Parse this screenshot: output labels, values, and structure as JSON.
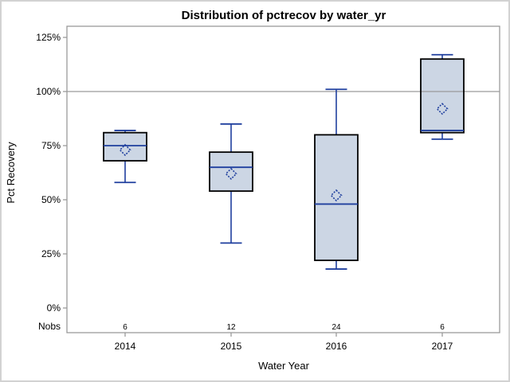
{
  "chart_data": {
    "type": "boxplot",
    "title": "Distribution of pctrecov by water_yr",
    "xlabel": "Water Year",
    "ylabel": "Pct Recovery",
    "categories": [
      "2014",
      "2015",
      "2016",
      "2017"
    ],
    "nobs_label": "Nobs",
    "nobs": [
      6,
      12,
      24,
      6
    ],
    "y_ticks": [
      0,
      25,
      50,
      75,
      100,
      125
    ],
    "y_tick_labels": [
      "0%",
      "25%",
      "50%",
      "75%",
      "100%",
      "125%"
    ],
    "ylim": [
      -11.4,
      130.1
    ],
    "reference_line": 100,
    "grid": "reference-line-at-100-only",
    "legend": "none",
    "series": [
      {
        "category": "2014",
        "min": 58,
        "q1": 68,
        "median": 75,
        "q3": 81,
        "max": 82,
        "mean": 73,
        "nobs": 6
      },
      {
        "category": "2015",
        "min": 30,
        "q1": 54,
        "median": 65,
        "q3": 72,
        "max": 85,
        "mean": 62,
        "nobs": 12
      },
      {
        "category": "2016",
        "min": 18,
        "q1": 22,
        "median": 48,
        "q3": 80,
        "max": 101,
        "mean": 52,
        "nobs": 24
      },
      {
        "category": "2017",
        "min": 78,
        "q1": 81,
        "median": 82,
        "q3": 115,
        "max": 117,
        "mean": 92,
        "nobs": 6
      }
    ],
    "colors": {
      "box_fill": "#ccd6e4",
      "box_edge": "#000000",
      "line_blue": "#1f3f9e",
      "frame_gray": "#9a9a9a",
      "text": "#000000",
      "background": "#ffffff",
      "outer_border": "#d2d2d2"
    }
  }
}
